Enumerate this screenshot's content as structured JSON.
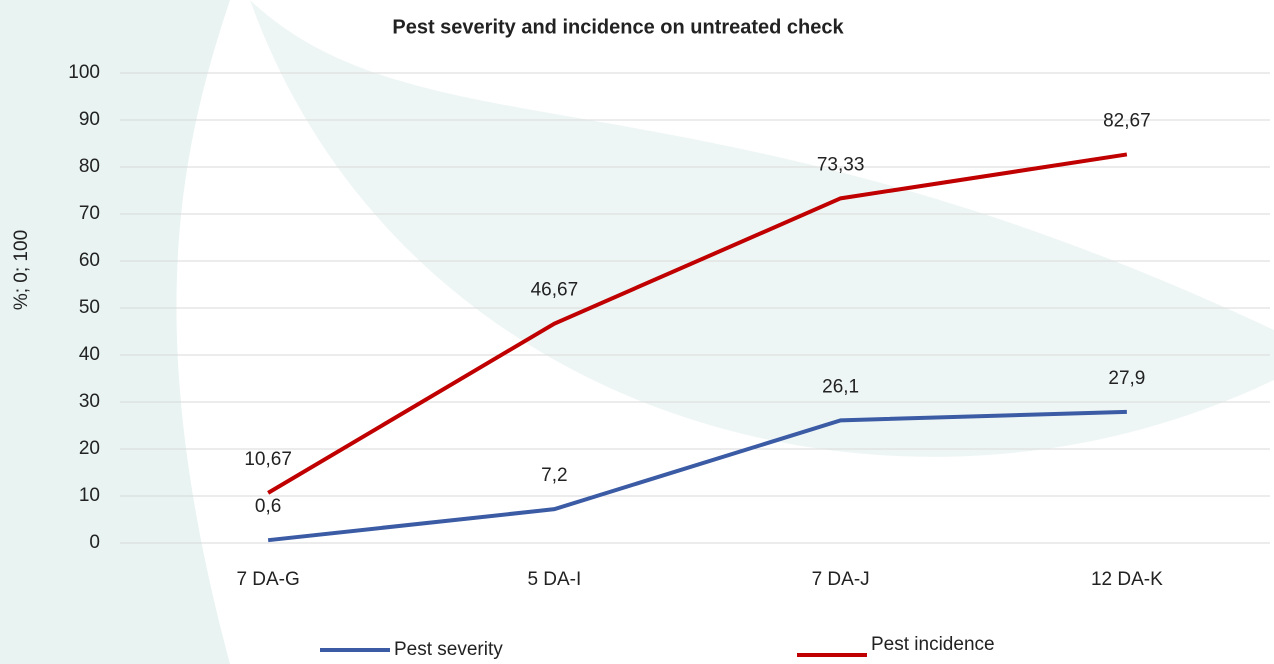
{
  "chart_data": {
    "type": "line",
    "title": "Pest severity and incidence on untreated check",
    "y_label": "%; 0; 100",
    "categories": [
      "7 DA-G",
      "5 DA-I",
      "7 DA-J",
      "12 DA-K"
    ],
    "series": [
      {
        "name": "Pest severity",
        "color": "#3b5ba5",
        "values": [
          0.6,
          7.2,
          26.1,
          27.9
        ],
        "value_labels": [
          "0,6",
          "7,2",
          "26,1",
          "27,9"
        ]
      },
      {
        "name": "Pest incidence",
        "color": "#c00000",
        "values": [
          10.67,
          46.67,
          73.33,
          82.67
        ],
        "value_labels": [
          "10,67",
          "46,67",
          "73,33",
          "82,67"
        ]
      }
    ],
    "ylim": [
      0,
      100
    ],
    "yticks": [
      0,
      10,
      20,
      30,
      40,
      50,
      60,
      70,
      80,
      90,
      100
    ],
    "grid": true,
    "legend": "bottom"
  }
}
